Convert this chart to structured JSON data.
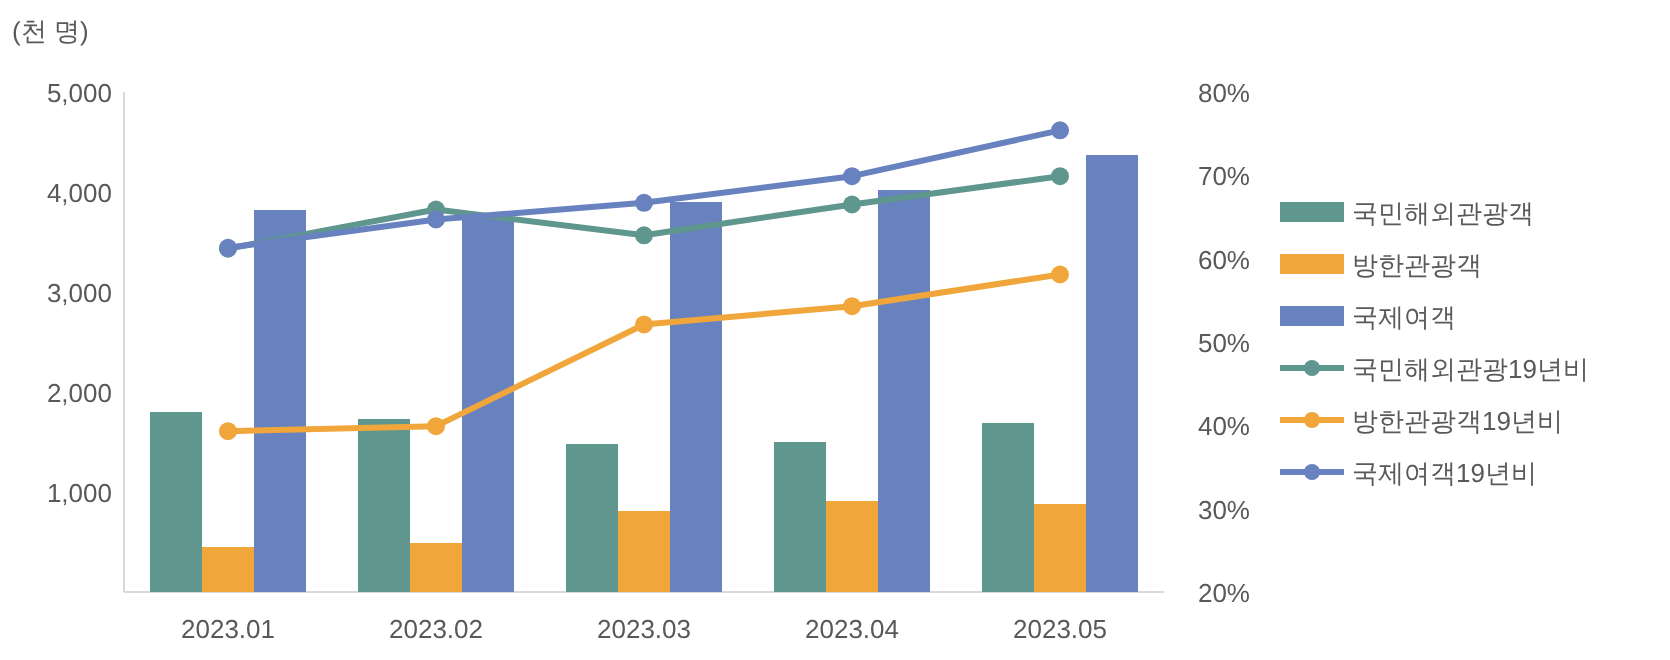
{
  "chart_data": {
    "type": "bar",
    "ylabel": "(천 명)",
    "categories": [
      "2023.01",
      "2023.02",
      "2023.03",
      "2023.04",
      "2023.05"
    ],
    "ylim": [
      0,
      5000
    ],
    "yticks": [
      {
        "value": 0,
        "label": null
      },
      {
        "value": 1000,
        "label": "1,000"
      },
      {
        "value": 2000,
        "label": "2,000"
      },
      {
        "value": 3000,
        "label": "3,000"
      },
      {
        "value": 4000,
        "label": "4,000"
      },
      {
        "value": 5000,
        "label": "5,000"
      }
    ],
    "y2lim": [
      20,
      80
    ],
    "y2ticks": [
      {
        "value": 20,
        "label": "20%"
      },
      {
        "value": 30,
        "label": "30%"
      },
      {
        "value": 40,
        "label": "40%"
      },
      {
        "value": 50,
        "label": "50%"
      },
      {
        "value": 60,
        "label": "60%"
      },
      {
        "value": 70,
        "label": "70%"
      },
      {
        "value": 80,
        "label": "80%"
      }
    ],
    "grid": false,
    "legend": "right",
    "marker": "circle",
    "series": [
      {
        "name": "국민해외관광객",
        "color": "#5f968e",
        "values": [
          1800,
          1730,
          1480,
          1500,
          1690
        ]
      },
      {
        "name": "방한관광객",
        "color": "#f0a63a",
        "values": [
          450,
          490,
          810,
          910,
          880
        ]
      },
      {
        "name": "국제여객",
        "color": "#6882c0",
        "values": [
          3820,
          3750,
          3900,
          4020,
          4370
        ]
      },
      {
        "name": "국민해외관광19년비",
        "type": "line",
        "axis": "y2",
        "color": "#5f968e",
        "values": [
          61.2,
          65.9,
          62.8,
          66.5,
          69.9
        ]
      },
      {
        "name": "방한관광객19년비",
        "type": "line",
        "axis": "y2",
        "color": "#f0a63a",
        "values": [
          39.3,
          39.9,
          52.1,
          54.3,
          58.1
        ]
      },
      {
        "name": "국제여객19년비",
        "type": "line",
        "axis": "y2",
        "color": "#6882c0",
        "values": [
          61.3,
          64.7,
          66.7,
          69.9,
          75.4
        ]
      }
    ]
  }
}
